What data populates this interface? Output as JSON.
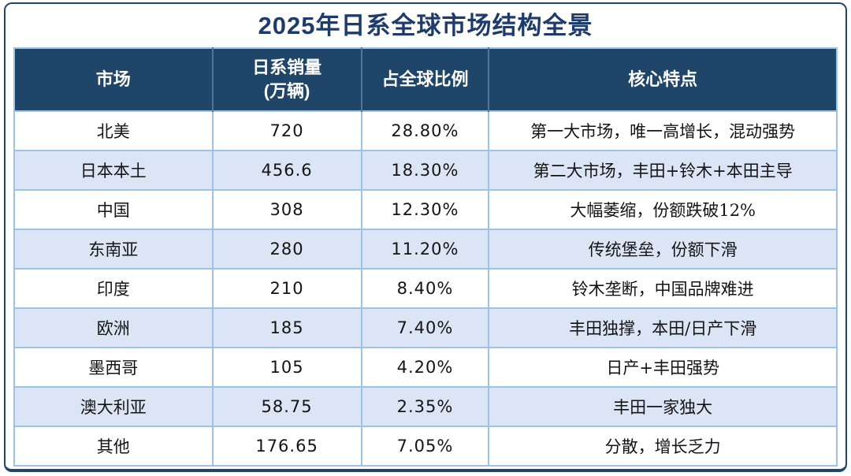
{
  "title": "2025年日系全球市场结构全景",
  "colors": {
    "outer_border": "#24456B",
    "title_text": "#1F3B6B",
    "header_bg": "#1F4568",
    "header_text": "#FFFFFF",
    "header_divider": "#52749B",
    "grid_line": "#9CC2E5",
    "stripe_bg": "#DCE5F5",
    "body_text": "#141414",
    "page_bg": "#FFFFFF"
  },
  "chart_data": {
    "type": "table",
    "title": "2025年日系全球市场结构全景",
    "columns": [
      "市场",
      "日系销量(万辆)",
      "占全球比例",
      "核心特点"
    ],
    "header": [
      {
        "key": "market",
        "lines": [
          "市场"
        ]
      },
      {
        "key": "sales",
        "lines": [
          "日系销量",
          "(万辆)"
        ]
      },
      {
        "key": "share",
        "lines": [
          "占全球比例"
        ]
      },
      {
        "key": "notes",
        "lines": [
          "核心特点"
        ]
      }
    ],
    "rows": [
      {
        "market": "北美",
        "sales": "720",
        "share": "28.80%",
        "notes": "第一大市场，唯一高增长，混动强势"
      },
      {
        "market": "日本本土",
        "sales": "456.6",
        "share": "18.30%",
        "notes": "第二大市场，丰田+铃木+本田主导"
      },
      {
        "market": "中国",
        "sales": "308",
        "share": "12.30%",
        "notes": "大幅萎缩，份额跌破12%"
      },
      {
        "market": "东南亚",
        "sales": "280",
        "share": "11.20%",
        "notes": "传统堡垒，份额下滑"
      },
      {
        "market": "印度",
        "sales": "210",
        "share": "8.40%",
        "notes": "铃木垄断，中国品牌难进"
      },
      {
        "market": "欧洲",
        "sales": "185",
        "share": "7.40%",
        "notes": "丰田独撑，本田/日产下滑"
      },
      {
        "market": "墨西哥",
        "sales": "105",
        "share": "4.20%",
        "notes": "日产+丰田强势"
      },
      {
        "market": "澳大利亚",
        "sales": "58.75",
        "share": "2.35%",
        "notes": "丰田一家独大"
      },
      {
        "market": "其他",
        "sales": "176.65",
        "share": "7.05%",
        "notes": "分散，增长乏力"
      }
    ],
    "sales_values": [
      720,
      456.6,
      308,
      280,
      210,
      185,
      105,
      58.75,
      176.65
    ],
    "share_values_pct": [
      28.8,
      18.3,
      12.3,
      11.2,
      8.4,
      7.4,
      4.2,
      2.35,
      7.05
    ],
    "stripe_pattern": "alternating, first row white",
    "legend_position": "none",
    "grid": true
  }
}
